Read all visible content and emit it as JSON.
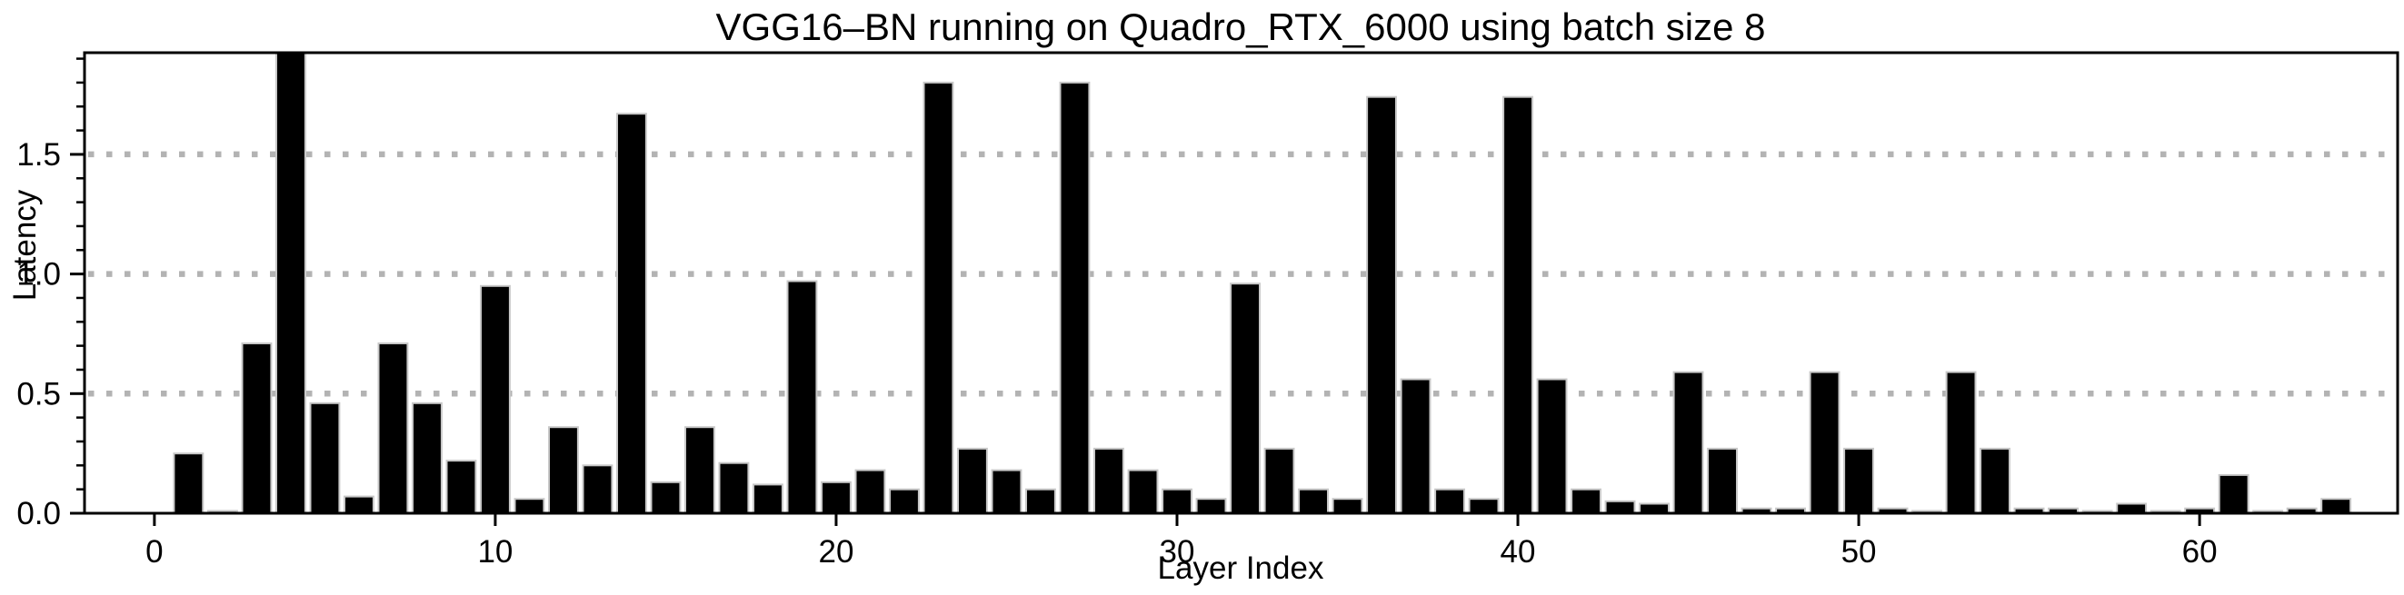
{
  "page": {
    "background": "#ffffff"
  },
  "chart_data": {
    "type": "bar",
    "title": "VGG16–BN running on Quadro_RTX_6000 using batch size 8",
    "xlabel": "Layer Index",
    "ylabel": "Latency",
    "x": [
      1,
      2,
      3,
      4,
      5,
      6,
      7,
      8,
      9,
      10,
      11,
      12,
      13,
      14,
      15,
      16,
      17,
      18,
      19,
      20,
      21,
      22,
      23,
      24,
      25,
      26,
      27,
      28,
      29,
      30,
      31,
      32,
      33,
      34,
      35,
      36,
      37,
      38,
      39,
      40,
      41,
      42,
      43,
      44,
      45,
      46,
      47,
      48,
      49,
      50,
      51,
      52,
      53,
      54,
      55,
      56,
      57,
      58,
      59,
      60,
      61,
      62,
      63,
      64
    ],
    "values": [
      0.25,
      0.01,
      0.71,
      1.93,
      0.46,
      0.07,
      0.71,
      0.46,
      0.22,
      0.95,
      0.06,
      0.36,
      0.2,
      1.67,
      0.13,
      0.36,
      0.21,
      0.12,
      0.97,
      0.13,
      0.18,
      0.1,
      1.8,
      0.27,
      0.18,
      0.1,
      1.8,
      0.27,
      0.18,
      0.1,
      0.06,
      0.96,
      0.27,
      0.1,
      0.06,
      1.74,
      0.56,
      0.1,
      0.06,
      1.74,
      0.56,
      0.1,
      0.05,
      0.04,
      0.59,
      0.27,
      0.02,
      0.02,
      0.59,
      0.27,
      0.02,
      0.01,
      0.59,
      0.27,
      0.02,
      0.02,
      0.01,
      0.04,
      0.01,
      0.02,
      0.16,
      0.01,
      0.02,
      0.06
    ],
    "x_ticks": [
      0,
      10,
      20,
      30,
      40,
      50,
      60
    ],
    "y_ticks": [
      0,
      0.5,
      1,
      1.5
    ],
    "y_tick_labels": [
      "0.0",
      "0.5",
      "1.0",
      "1.5"
    ],
    "y_minor_tick_step": 0.1,
    "gridlines_at": [
      0.5,
      1,
      1.5
    ],
    "grid_style": "dotted",
    "xlim": [
      -2.05,
      65.81
    ],
    "ylim": [
      0,
      1.925
    ],
    "bar_width_fraction": 0.85,
    "legend": null,
    "colors": {
      "bar": "#000000",
      "bar_edge": "#c8c8c8",
      "grid": "#b3b3b3",
      "axis": "#000000",
      "text": "#000000",
      "background": "#ffffff"
    }
  }
}
